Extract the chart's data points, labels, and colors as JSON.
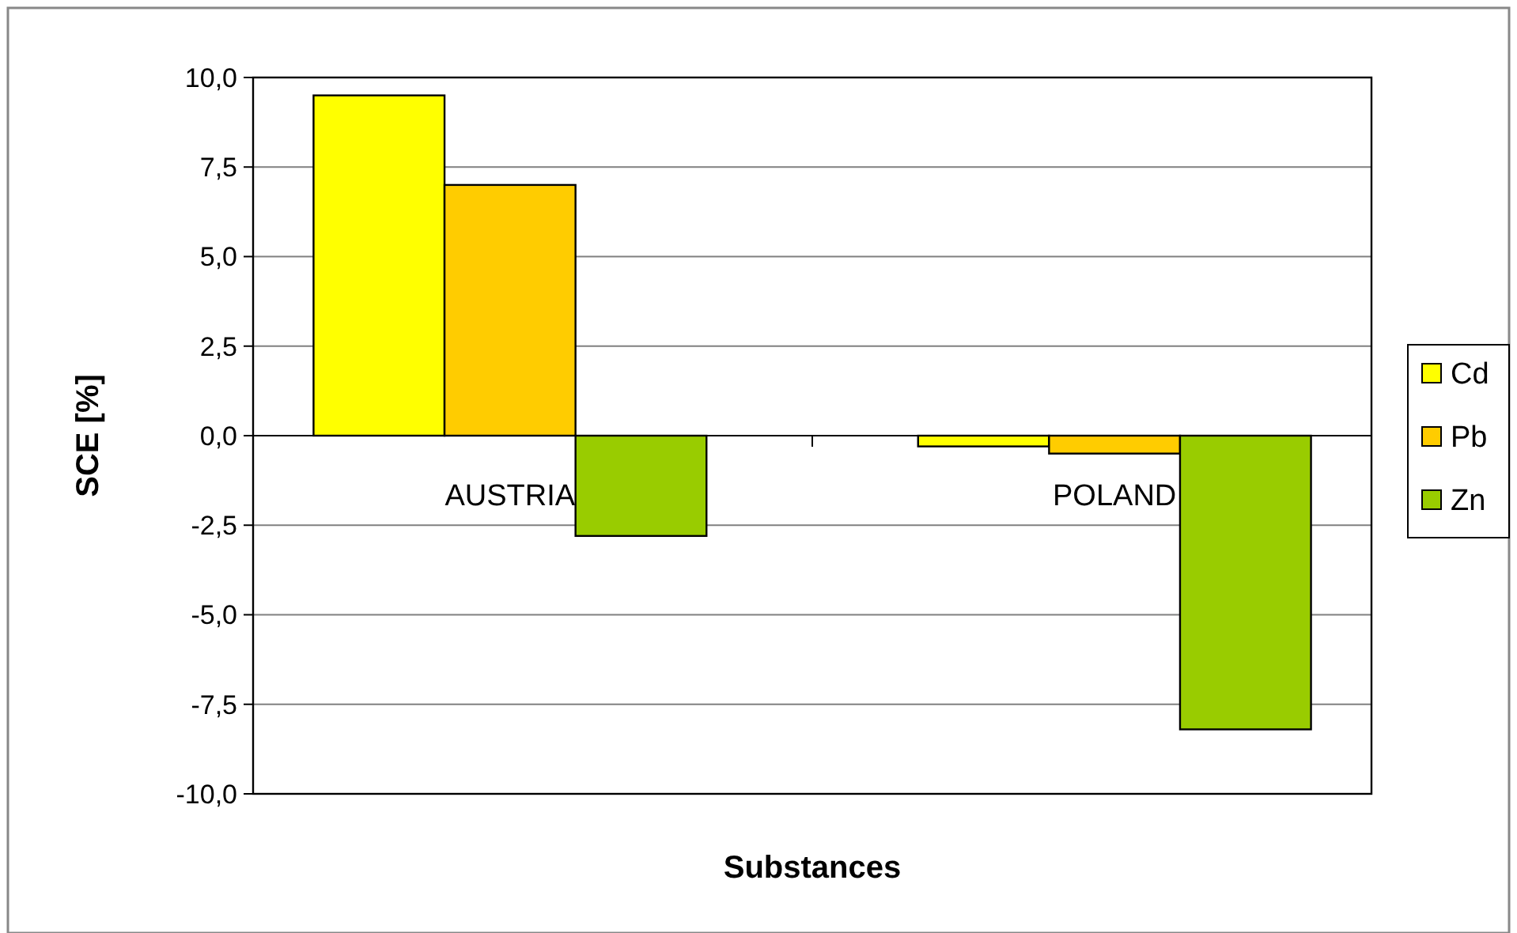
{
  "chart_data": {
    "type": "bar",
    "xlabel": "Substances",
    "ylabel": "SCE [%]",
    "categories": [
      "AUSTRIA",
      "POLAND"
    ],
    "series": [
      {
        "name": "Cd",
        "color": "#ffff00",
        "values": [
          9.5,
          -0.3
        ]
      },
      {
        "name": "Pb",
        "color": "#ffcc00",
        "values": [
          7.0,
          -0.5
        ]
      },
      {
        "name": "Zn",
        "color": "#99cc00",
        "values": [
          -2.8,
          -8.2
        ]
      }
    ],
    "ylim": [
      -10,
      10
    ],
    "yticks": [
      {
        "value": -10,
        "label": "-10,0"
      },
      {
        "value": -7.5,
        "label": "-7,5"
      },
      {
        "value": -5,
        "label": "-5,0"
      },
      {
        "value": -2.5,
        "label": "-2,5"
      },
      {
        "value": 0,
        "label": "0,0"
      },
      {
        "value": 2.5,
        "label": "2,5"
      },
      {
        "value": 5,
        "label": "5,0"
      },
      {
        "value": 7.5,
        "label": "7,5"
      },
      {
        "value": 10,
        "label": "10,0"
      }
    ],
    "grid": "y",
    "legend": "right"
  }
}
